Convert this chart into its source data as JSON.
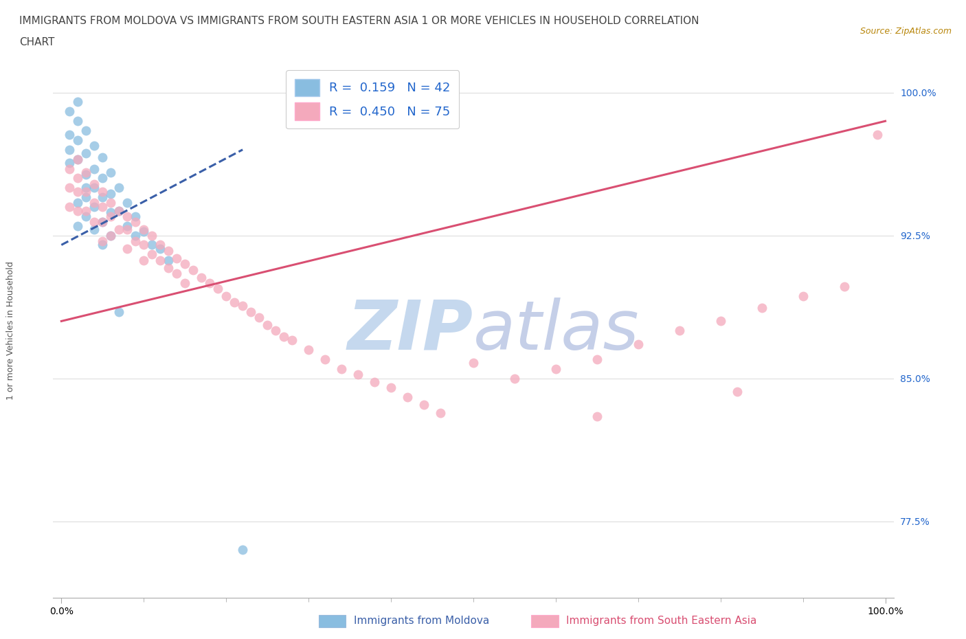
{
  "title_line1": "IMMIGRANTS FROM MOLDOVA VS IMMIGRANTS FROM SOUTH EASTERN ASIA 1 OR MORE VEHICLES IN HOUSEHOLD CORRELATION",
  "title_line2": "CHART",
  "source_text": "Source: ZipAtlas.com",
  "ylabel": "1 or more Vehicles in Household",
  "legend_label1": "Immigrants from Moldova",
  "legend_label2": "Immigrants from South Eastern Asia",
  "r1": 0.159,
  "n1": 42,
  "r2": 0.45,
  "n2": 75,
  "color1": "#89bde0",
  "color2": "#f4a9bc",
  "trendline1_color": "#3a5fa8",
  "trendline2_color": "#d94f72",
  "watermark_zip_color": "#c5d8ee",
  "watermark_atlas_color": "#c5cfe8",
  "background_color": "#ffffff",
  "xlim": [
    -0.01,
    1.01
  ],
  "ylim": [
    0.735,
    1.015
  ],
  "yticks": [
    0.775,
    0.85,
    0.925,
    1.0
  ],
  "ytick_labels": [
    "77.5%",
    "85.0%",
    "92.5%",
    "100.0%"
  ],
  "xtick_labels": [
    "0.0%",
    "100.0%"
  ],
  "xticks": [
    0.0,
    1.0
  ],
  "xticks_minor": [
    0.1,
    0.2,
    0.3,
    0.4,
    0.5,
    0.6,
    0.7,
    0.8,
    0.9
  ],
  "scatter1_x": [
    0.01,
    0.01,
    0.01,
    0.01,
    0.02,
    0.02,
    0.02,
    0.02,
    0.02,
    0.02,
    0.03,
    0.03,
    0.03,
    0.03,
    0.03,
    0.03,
    0.04,
    0.04,
    0.04,
    0.04,
    0.04,
    0.05,
    0.05,
    0.05,
    0.05,
    0.05,
    0.06,
    0.06,
    0.06,
    0.06,
    0.07,
    0.07,
    0.07,
    0.08,
    0.08,
    0.09,
    0.09,
    0.1,
    0.11,
    0.12,
    0.13,
    0.22
  ],
  "scatter1_y": [
    0.99,
    0.978,
    0.97,
    0.963,
    0.995,
    0.985,
    0.975,
    0.965,
    0.942,
    0.93,
    0.98,
    0.968,
    0.957,
    0.95,
    0.945,
    0.935,
    0.972,
    0.96,
    0.95,
    0.94,
    0.928,
    0.966,
    0.955,
    0.945,
    0.932,
    0.92,
    0.958,
    0.947,
    0.937,
    0.925,
    0.95,
    0.938,
    0.885,
    0.942,
    0.93,
    0.935,
    0.925,
    0.927,
    0.92,
    0.918,
    0.912,
    0.76
  ],
  "scatter2_x": [
    0.01,
    0.01,
    0.01,
    0.02,
    0.02,
    0.02,
    0.02,
    0.03,
    0.03,
    0.03,
    0.04,
    0.04,
    0.04,
    0.05,
    0.05,
    0.05,
    0.05,
    0.06,
    0.06,
    0.06,
    0.07,
    0.07,
    0.08,
    0.08,
    0.08,
    0.09,
    0.09,
    0.1,
    0.1,
    0.1,
    0.11,
    0.11,
    0.12,
    0.12,
    0.13,
    0.13,
    0.14,
    0.14,
    0.15,
    0.15,
    0.16,
    0.17,
    0.18,
    0.19,
    0.2,
    0.21,
    0.22,
    0.23,
    0.24,
    0.25,
    0.26,
    0.27,
    0.28,
    0.3,
    0.32,
    0.34,
    0.36,
    0.38,
    0.4,
    0.42,
    0.44,
    0.46,
    0.55,
    0.6,
    0.65,
    0.7,
    0.75,
    0.8,
    0.85,
    0.9,
    0.95,
    0.99,
    0.65,
    0.82,
    0.5
  ],
  "scatter2_y": [
    0.96,
    0.95,
    0.94,
    0.965,
    0.955,
    0.948,
    0.938,
    0.958,
    0.948,
    0.938,
    0.952,
    0.942,
    0.932,
    0.948,
    0.94,
    0.932,
    0.922,
    0.942,
    0.935,
    0.925,
    0.938,
    0.928,
    0.935,
    0.928,
    0.918,
    0.932,
    0.922,
    0.928,
    0.92,
    0.912,
    0.925,
    0.915,
    0.92,
    0.912,
    0.917,
    0.908,
    0.913,
    0.905,
    0.91,
    0.9,
    0.907,
    0.903,
    0.9,
    0.897,
    0.893,
    0.89,
    0.888,
    0.885,
    0.882,
    0.878,
    0.875,
    0.872,
    0.87,
    0.865,
    0.86,
    0.855,
    0.852,
    0.848,
    0.845,
    0.84,
    0.836,
    0.832,
    0.85,
    0.855,
    0.86,
    0.868,
    0.875,
    0.88,
    0.887,
    0.893,
    0.898,
    0.978,
    0.83,
    0.843,
    0.858
  ],
  "trendline1_x": [
    0.0,
    0.22
  ],
  "trendline1_y": [
    0.92,
    0.97
  ],
  "trendline2_x": [
    0.0,
    1.0
  ],
  "trendline2_y": [
    0.88,
    0.985
  ],
  "title_fontsize": 11,
  "axis_label_fontsize": 9,
  "tick_fontsize": 10,
  "legend_fontsize": 13,
  "source_fontsize": 9
}
